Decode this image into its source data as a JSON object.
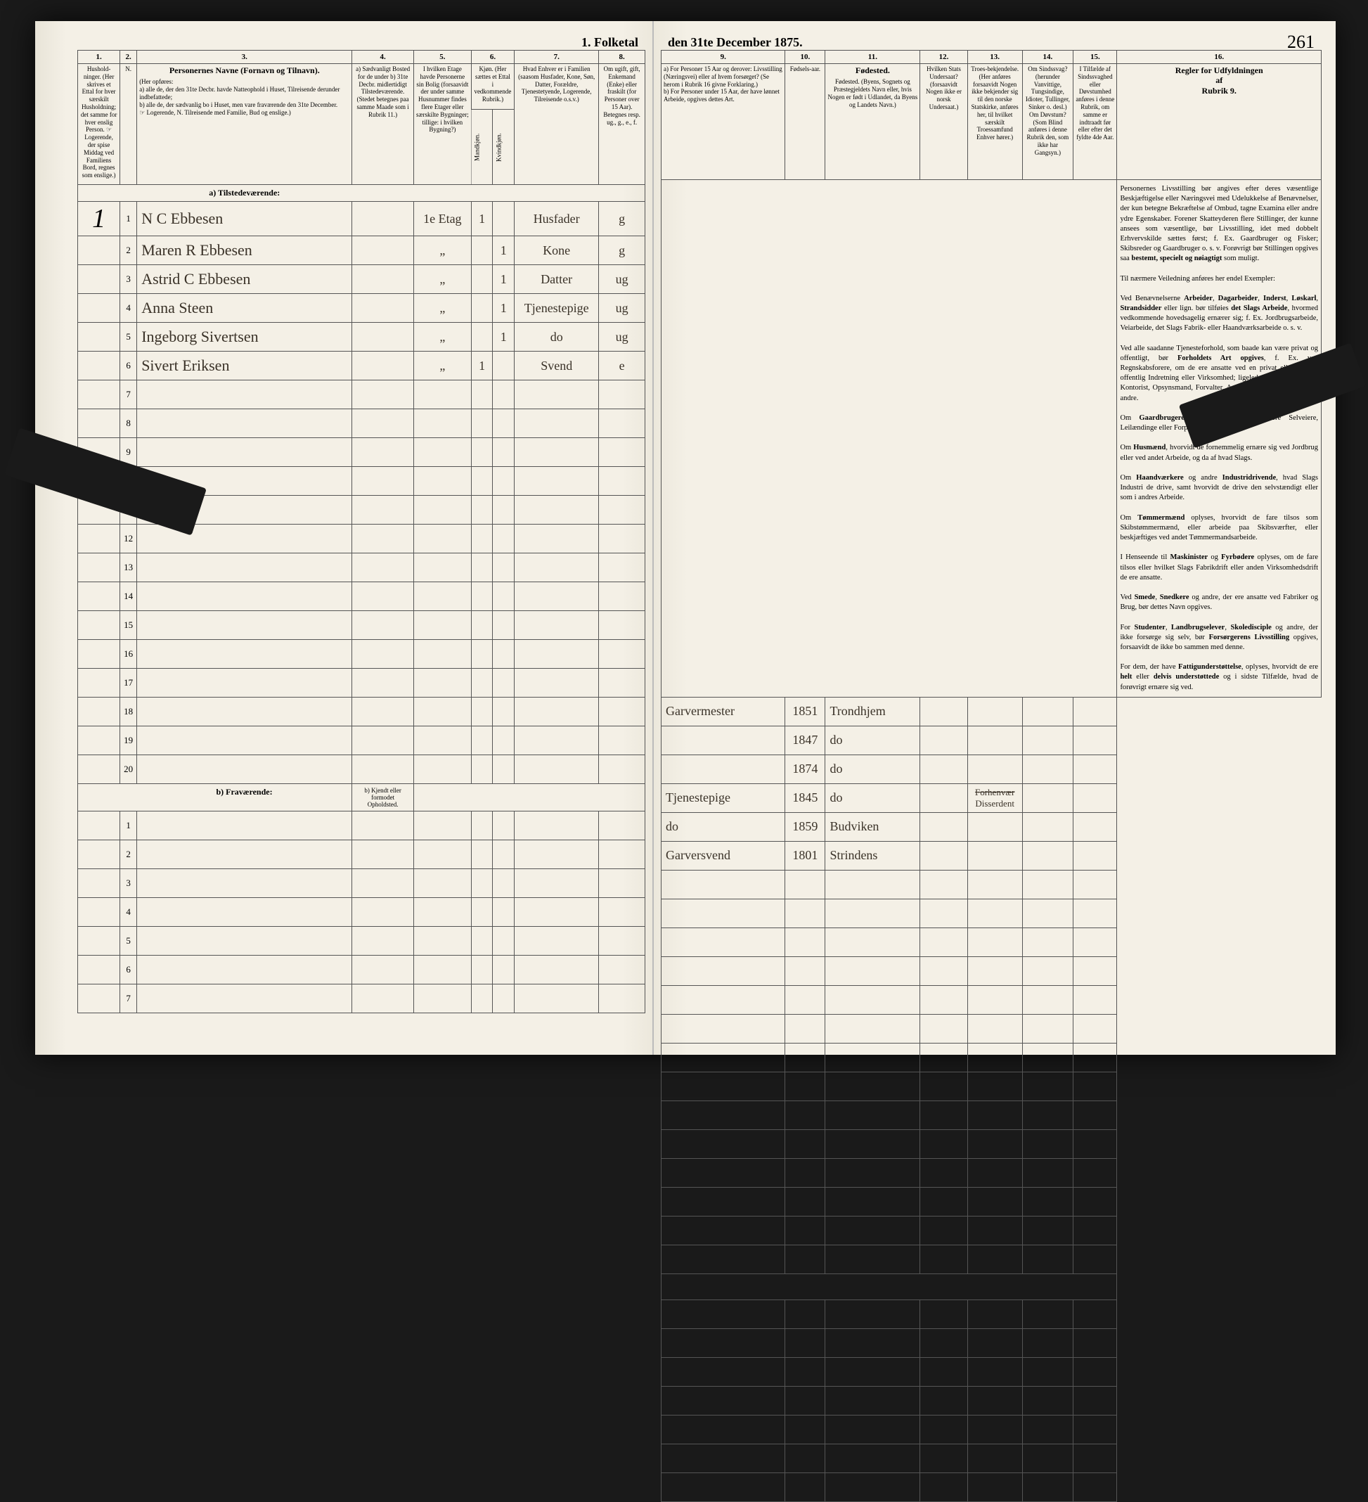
{
  "title_left": "1.  Folketal",
  "title_right": "den 31te December 1875.",
  "page_number": "261",
  "col_nums_left": [
    "1.",
    "2.",
    "3.",
    "4.",
    "5.",
    "6.",
    "7.",
    "8."
  ],
  "col_nums_right": [
    "9.",
    "10.",
    "11.",
    "12.",
    "13.",
    "14.",
    "15.",
    "16."
  ],
  "headers_left": {
    "c1": "Hushold-ninger. (Her skrives et Ettal for hver særskilt Husholdning; det samme for hver enslig Person. ☞ Logerende, der spise Middag ved Familiens Bord, regnes som enslige.)",
    "c2": "N.",
    "c3_title": "Personernes Navne (Fornavn og Tilnavn).",
    "c3_body": "(Her opføres:\na) alle de, der den 31te Decbr. havde Natteophold i Huset, Tilreisende derunder indbefattede;\nb) alle de, der sædvanlig bo i Huset, men vare fraværende den 31te December.\n☞ Logerende, N. Tilreisende med Familie, Bud og enslige.)",
    "c4": "a) Sædvanligt Bosted for de under b) 31te Decbr. midlertidigt Tilstedeværende. (Stedet betegnes paa samme Maade som i Rubrik 11.)",
    "c5": "I hvilken Etage havde Personerne sin Bolig (forsaavidt der under samme Husnummer findes flere Etager eller særskilte Bygninger; tillige: i hvilken Bygning?)",
    "c6": "Kjøn. (Her sættes et Ettal i vedkommende Rubrik.)",
    "c6a": "Mandkjøn.",
    "c6b": "Kvindkjøn.",
    "c7": "Hvad Enhver er i Familien (saasom Husfader, Kone, Søn, Datter, Forældre, Tjenestetyende, Logerende, Tilreisende o.s.v.)",
    "c8": "Om ugift, gift, Enkemand (Enke) eller fraskilt (for Personer over 15 Aar). Betegnes resp. ug., g., e., f."
  },
  "headers_right": {
    "c9": "a) For Personer 15 Aar og derover: Livsstilling (Næringsvei) eller af hvem forsørget? (Se herom i Rubrik 16 givne Forklaring.)\nb) For Personer under 15 Aar, der have lønnet Arbeide, opgives dettes Art.",
    "c10": "Fødsels-aar.",
    "c11": "Fødested. (Byens, Sognets og Præstegjeldets Navn eller, hvis Nogen er født i Udlandet, da Byens og Landets Navn.)",
    "c12": "Hvilken Stats Undersaat? (forsaavidt Nogen ikke er norsk Undersaat.)",
    "c13": "Troes-bekjendelse. (Her anføres forsaavidt Nogen ikke bekjender sig til den norske Statskirke, anføres her, til hvilket særskilt Troessamfund Enhver hører.)",
    "c14": "Om Sindssvag? (herunder Vanvittige, Tungsindige, Idioter, Tullinger, Sinker o. desl.) Om Døvstum? (Som Blind anføres i denne Rubrik den, som ikke har Gangsyn.)",
    "c15": "I Tilfælde af Sindssvaghed eller Døvstumhed anføres i denne Rubrik, om samme er indtraadt før eller efter det fyldte 4de Aar.",
    "c16_title": "Regler for Udfyldningen\naf\nRubrik 9."
  },
  "section_a": "a)  Tilstedeværende:",
  "section_b": "b)  Fraværende:",
  "section_b_col4": "b) Kjendt eller formodet Opholdsted.",
  "rows": [
    {
      "h": "1",
      "n": "1",
      "name": "N  C  Ebbesen",
      "c4": "",
      "c5": "1e Etag",
      "c6a": "1",
      "c6b": "",
      "c7": "Husfader",
      "c8": "g",
      "c9": "Garvermester",
      "c10": "1851",
      "c11": "Trondhjem",
      "c13": ""
    },
    {
      "h": "",
      "n": "2",
      "name": "Maren  R  Ebbesen",
      "c4": "",
      "c5": "„",
      "c6a": "",
      "c6b": "1",
      "c7": "Kone",
      "c8": "g",
      "c9": "",
      "c10": "1847",
      "c11": "do",
      "c13": ""
    },
    {
      "h": "",
      "n": "3",
      "name": "Astrid  C  Ebbesen",
      "c4": "",
      "c5": "„",
      "c6a": "",
      "c6b": "1",
      "c7": "Datter",
      "c8": "ug",
      "c9": "",
      "c10": "1874",
      "c11": "do",
      "c13": ""
    },
    {
      "h": "",
      "n": "4",
      "name": "Anna  Steen",
      "c4": "",
      "c5": "„",
      "c6a": "",
      "c6b": "1",
      "c7": "Tjenestepige",
      "c8": "ug",
      "c9": "Tjenestepige",
      "c10": "1845",
      "c11": "do",
      "c13": "Disserdent"
    },
    {
      "h": "",
      "n": "5",
      "name": "Ingeborg  Sivertsen",
      "c4": "",
      "c5": "„",
      "c6a": "",
      "c6b": "1",
      "c7": "do",
      "c8": "ug",
      "c9": "do",
      "c10": "1859",
      "c11": "Budviken",
      "c13": ""
    },
    {
      "h": "",
      "n": "6",
      "name": "Sivert  Eriksen",
      "c4": "",
      "c5": "„",
      "c6a": "1",
      "c6b": "",
      "c7": "Svend",
      "c8": "e",
      "c9": "Garversvend",
      "c10": "1801",
      "c11": "Strindens",
      "c13": ""
    }
  ],
  "empty_rows_a": [
    "7",
    "8",
    "9",
    "10",
    "11",
    "12",
    "13",
    "14",
    "15",
    "16",
    "17",
    "18",
    "19",
    "20"
  ],
  "empty_rows_b": [
    "1",
    "2",
    "3",
    "4",
    "5",
    "6",
    "7"
  ],
  "instructions": "Personernes Livsstilling bør angives efter deres væsentlige Beskjæftigelse eller Næringsvei med Udelukkelse af Benævnelser, der kun betegne Bekræftelse af Ombud, tagne Examina eller andre ydre Egenskaber. Forener Skatteyderen flere Stillinger, der kunne ansees som væsentlige, bør Livsstilling, idet med dobbelt Erhvervskilde sættes først; f. Ex. Gaardbruger og Fisker; Skibsreder og Gaardbruger o. s. v. Forøvrigt bør Stillingen opgives saa bestemt, specielt og nøiagtigt som muligt.\n\nTil nærmere Veiledning anføres her endel Exempler:\n\nVed Benævnelserne Arbeider, Dagarbeider, Inderst, Løskarl, Strandsidder eller lign. bør tilføies det Slags Arbeide, hvormed vedkommende hovedsagelig ernærer sig; f. Ex. Jordbrugsarbeide, Veiarbeide, det Slags Fabrik- eller Haandværksarbeide o. s. v.\n\nVed alle saadanne Tjenesteforhold, som baade kan være privat og offentligt, bør Forholdets Art opgives, f. Ex. ved Regnskabsforere, om de ere ansatte ved en privat eller ved en offentlig Indretning eller Virksomhed; ligeledes ved Fuldmægtig, Kontorist, Opsynsmand, Forvalter, Assistent, Lærer, Ingenieur og andre.\n\nOm Gaardbrugere oplyses, hvorvidt de ere Selveiere, Leilændinge eller Forpagtere.\n\nOm Husmænd, hvorvidt de fornemmelig ernære sig ved Jordbrug eller ved andet Arbeide, og da af hvad Slags.\n\nOm Haandværkere og andre Industridrivende, hvad Slags Industri de drive, samt hvorvidt de drive den selvstændigt eller som i andres Arbeide.\n\nOm Tømmermænd oplyses, hvorvidt de fare tilsos som Skibstømmermænd, eller arbeide paa Skibsværfter, eller beskjæftiges ved andet Tømmermandsarbeide.\n\nI Henseende til Maskinister og Fyrbødere oplyses, om de fare tilsos eller hvilket Slags Fabrikdrift eller anden Virksomhedsdrift de ere ansatte.\n\nVed Smede, Snedkere og andre, der ere ansatte ved Fabriker og Brug, bør dettes Navn opgives.\n\nFor Studenter, Landbrugselever, Skoledisciple og andre, der ikke forsørge sig selv, bør Forsørgerens Livsstilling opgives, forsaavidt de ikke bo sammen med denne.\n\nFor dem, der have Fattigunderstøttelse, oplyses, hvorvidt de ere helt eller delvis understøttede og i sidste Tilfælde, hvad de forøvrigt ernære sig ved."
}
